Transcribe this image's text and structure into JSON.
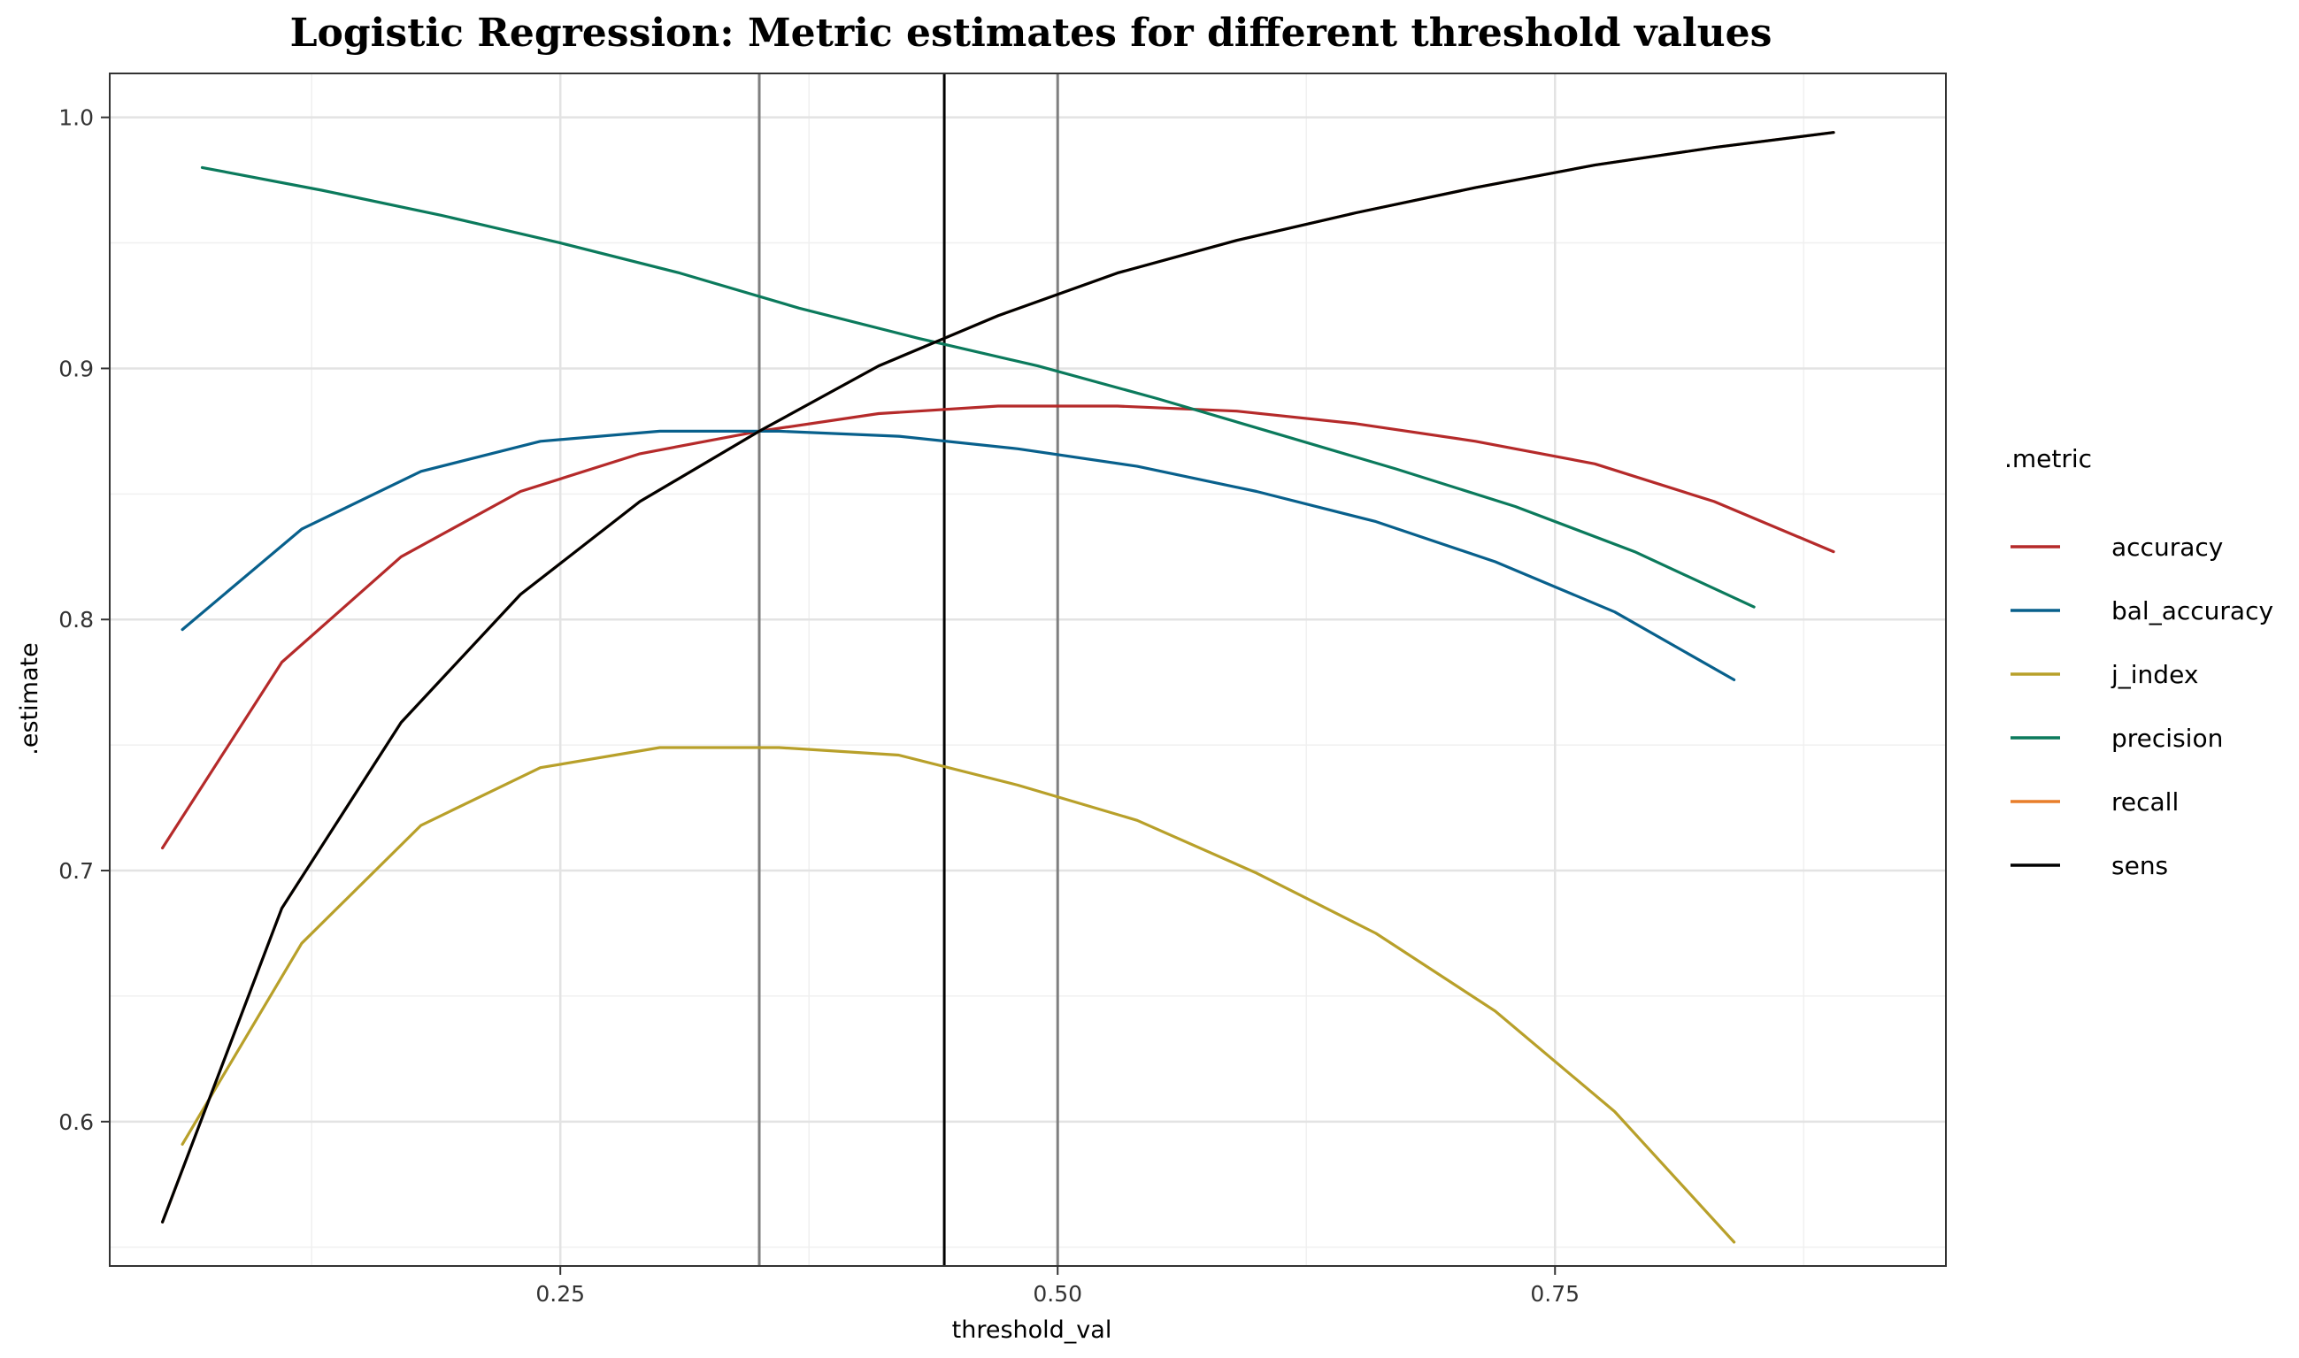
{
  "chart_data": {
    "type": "line",
    "title": "Logistic Regression: Metric estimates for different threshold values",
    "xlabel": "threshold_val",
    "ylabel": ".estimate",
    "xlim": [
      0.0235,
      0.9465
    ],
    "ylim": [
      0.5425,
      1.0175
    ],
    "x_ticks": [
      0.25,
      0.5,
      0.75
    ],
    "x_tick_labels": [
      "0.25",
      "0.50",
      "0.75"
    ],
    "y_ticks": [
      0.6,
      0.7,
      0.8,
      0.9,
      1.0
    ],
    "y_tick_labels": [
      "0.6",
      "0.7",
      "0.8",
      "0.9",
      "1.0"
    ],
    "grid": true,
    "legend": {
      "title": ".metric",
      "position": "right"
    },
    "vlines": [
      {
        "x": 0.35,
        "color": "#7f7f7f"
      },
      {
        "x": 0.443,
        "color": "#000000"
      },
      {
        "x": 0.5,
        "color": "#7f7f7f"
      }
    ],
    "series": [
      {
        "name": "accuracy",
        "color": "#b52a2a",
        "x": [
          0.05,
          0.11,
          0.17,
          0.23,
          0.29,
          0.35,
          0.41,
          0.47,
          0.53,
          0.59,
          0.65,
          0.71,
          0.77,
          0.83,
          0.89
        ],
        "y": [
          0.709,
          0.783,
          0.825,
          0.851,
          0.866,
          0.875,
          0.882,
          0.885,
          0.885,
          0.883,
          0.878,
          0.871,
          0.862,
          0.847,
          0.827
        ]
      },
      {
        "name": "bal_accuracy",
        "color": "#08608c",
        "x": [
          0.06,
          0.12,
          0.18,
          0.24,
          0.3,
          0.36,
          0.42,
          0.48,
          0.54,
          0.6,
          0.66,
          0.72,
          0.78,
          0.84
        ],
        "y": [
          0.796,
          0.836,
          0.859,
          0.871,
          0.875,
          0.875,
          0.873,
          0.868,
          0.861,
          0.851,
          0.839,
          0.823,
          0.803,
          0.776
        ]
      },
      {
        "name": "j_index",
        "color": "#b8a02a",
        "x": [
          0.06,
          0.12,
          0.18,
          0.24,
          0.3,
          0.36,
          0.42,
          0.48,
          0.54,
          0.6,
          0.66,
          0.72,
          0.78,
          0.84
        ],
        "y": [
          0.591,
          0.671,
          0.718,
          0.741,
          0.749,
          0.749,
          0.746,
          0.734,
          0.72,
          0.699,
          0.675,
          0.644,
          0.604,
          0.552
        ]
      },
      {
        "name": "precision",
        "color": "#0b7a5c",
        "x": [
          0.07,
          0.13,
          0.19,
          0.25,
          0.31,
          0.37,
          0.43,
          0.49,
          0.55,
          0.61,
          0.67,
          0.73,
          0.79,
          0.85
        ],
        "y": [
          0.98,
          0.971,
          0.961,
          0.95,
          0.938,
          0.924,
          0.912,
          0.901,
          0.888,
          0.874,
          0.86,
          0.845,
          0.827,
          0.805
        ]
      },
      {
        "name": "recall",
        "color": "#e87e2a",
        "x": [
          0.05,
          0.11,
          0.17,
          0.23,
          0.29,
          0.35,
          0.41,
          0.47,
          0.53,
          0.59,
          0.65,
          0.71,
          0.77,
          0.83,
          0.89
        ],
        "y": [
          0.56,
          0.685,
          0.759,
          0.81,
          0.847,
          0.875,
          0.901,
          0.921,
          0.938,
          0.951,
          0.962,
          0.972,
          0.981,
          0.988,
          0.994
        ]
      },
      {
        "name": "sens",
        "color": "#000000",
        "x": [
          0.05,
          0.11,
          0.17,
          0.23,
          0.29,
          0.35,
          0.41,
          0.47,
          0.53,
          0.59,
          0.65,
          0.71,
          0.77,
          0.83,
          0.89
        ],
        "y": [
          0.56,
          0.685,
          0.759,
          0.81,
          0.847,
          0.875,
          0.901,
          0.921,
          0.938,
          0.951,
          0.962,
          0.972,
          0.981,
          0.988,
          0.994
        ]
      }
    ]
  }
}
